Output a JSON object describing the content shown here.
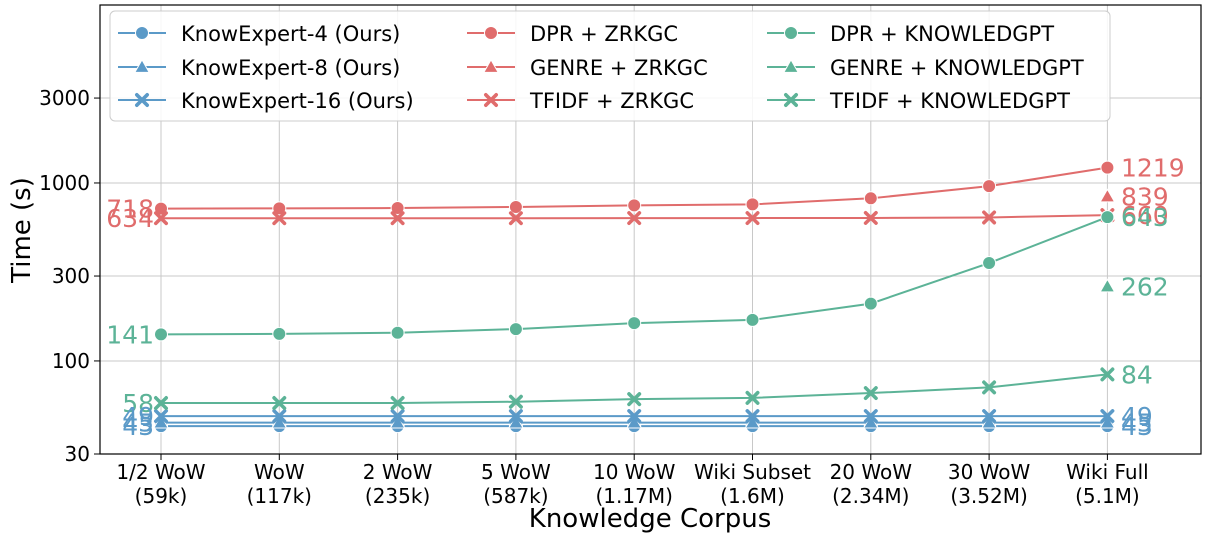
{
  "chart_data": {
    "type": "line",
    "title": "",
    "xlabel": "Knowledge Corpus",
    "ylabel": "Time (s)",
    "y_scale": "log",
    "ylim": [
      30,
      10000
    ],
    "grid": true,
    "legend_position": "top-left",
    "categories": [
      {
        "line1": "1/2 WoW",
        "line2": "(59k)"
      },
      {
        "line1": "WoW",
        "line2": "(117k)"
      },
      {
        "line1": "2 WoW",
        "line2": "(235k)"
      },
      {
        "line1": "5 WoW",
        "line2": "(587k)"
      },
      {
        "line1": "10 WoW",
        "line2": "(1.17M)"
      },
      {
        "line1": "Wiki Subset",
        "line2": "(1.6M)"
      },
      {
        "line1": "20 WoW",
        "line2": "(2.34M)"
      },
      {
        "line1": "30 WoW",
        "line2": "(3.52M)"
      },
      {
        "line1": "Wiki Full",
        "line2": "(5.1M)"
      }
    ],
    "yticks": [
      {
        "value": 30,
        "label": "30"
      },
      {
        "value": 100,
        "label": "100"
      },
      {
        "value": 300,
        "label": "300"
      },
      {
        "value": 1000,
        "label": "1000"
      },
      {
        "value": 3000,
        "label": "3000"
      }
    ],
    "series": [
      {
        "name": "KnowExpert-4 (Ours)",
        "color": "#5b9ac8",
        "marker": "circle",
        "values": [
          43,
          43,
          43,
          43,
          43,
          43,
          43,
          43,
          43
        ]
      },
      {
        "name": "KnowExpert-8 (Ours)",
        "color": "#5b9ac8",
        "marker": "triangle",
        "values": [
          45,
          45,
          45,
          45,
          45,
          45,
          45,
          45,
          45
        ]
      },
      {
        "name": "KnowExpert-16 (Ours)",
        "color": "#5b9ac8",
        "marker": "x",
        "values": [
          49,
          49,
          49,
          49,
          49,
          49,
          49,
          49,
          49
        ]
      },
      {
        "name": "DPR + ZRKGC",
        "color": "#e06c6c",
        "marker": "circle",
        "values": [
          718,
          720,
          723,
          733,
          748,
          758,
          820,
          960,
          1219
        ]
      },
      {
        "name": "GENRE + ZRKGC",
        "color": "#e06c6c",
        "marker": "triangle",
        "values": [
          null,
          null,
          null,
          null,
          null,
          null,
          null,
          null,
          839
        ]
      },
      {
        "name": "TFIDF + ZRKGC",
        "color": "#e06c6c",
        "marker": "x",
        "values": [
          634,
          634,
          634,
          634,
          635,
          635,
          636,
          640,
          660
        ]
      },
      {
        "name": "DPR + KNOWLEDGPT",
        "color": "#5cb397",
        "marker": "circle",
        "values": [
          141,
          142,
          144,
          151,
          163,
          170,
          210,
          355,
          643
        ]
      },
      {
        "name": "GENRE + KNOWLEDGPT",
        "color": "#5cb397",
        "marker": "triangle",
        "values": [
          null,
          null,
          null,
          null,
          null,
          null,
          null,
          null,
          262
        ]
      },
      {
        "name": "TFIDF + KNOWLEDGPT",
        "color": "#5cb397",
        "marker": "x",
        "values": [
          58,
          58,
          58,
          59,
          61,
          62,
          66,
          71,
          84
        ]
      }
    ],
    "annotations_left": [
      {
        "text": "718",
        "value": 718,
        "color": "#e06c6c"
      },
      {
        "text": "634",
        "value": 634,
        "color": "#e06c6c"
      },
      {
        "text": "141",
        "value": 141,
        "color": "#5cb397"
      },
      {
        "text": "58",
        "value": 58,
        "color": "#5cb397"
      },
      {
        "text": "49",
        "value": 49,
        "color": "#5b9ac8"
      },
      {
        "text": "45",
        "value": 45,
        "color": "#5b9ac8"
      },
      {
        "text": "43",
        "value": 43,
        "color": "#5b9ac8"
      }
    ],
    "annotations_right": [
      {
        "text": "1219",
        "value": 1219,
        "color": "#e06c6c"
      },
      {
        "text": "839",
        "value": 839,
        "color": "#e06c6c"
      },
      {
        "text": "660",
        "value": 660,
        "color": "#e06c6c"
      },
      {
        "text": "643",
        "value": 643,
        "color": "#5cb397"
      },
      {
        "text": "262",
        "value": 262,
        "color": "#5cb397"
      },
      {
        "text": "84",
        "value": 84,
        "color": "#5cb397"
      },
      {
        "text": "49",
        "value": 49,
        "color": "#5b9ac8"
      },
      {
        "text": "45",
        "value": 45,
        "color": "#5b9ac8"
      },
      {
        "text": "43",
        "value": 43,
        "color": "#5b9ac8"
      }
    ]
  }
}
